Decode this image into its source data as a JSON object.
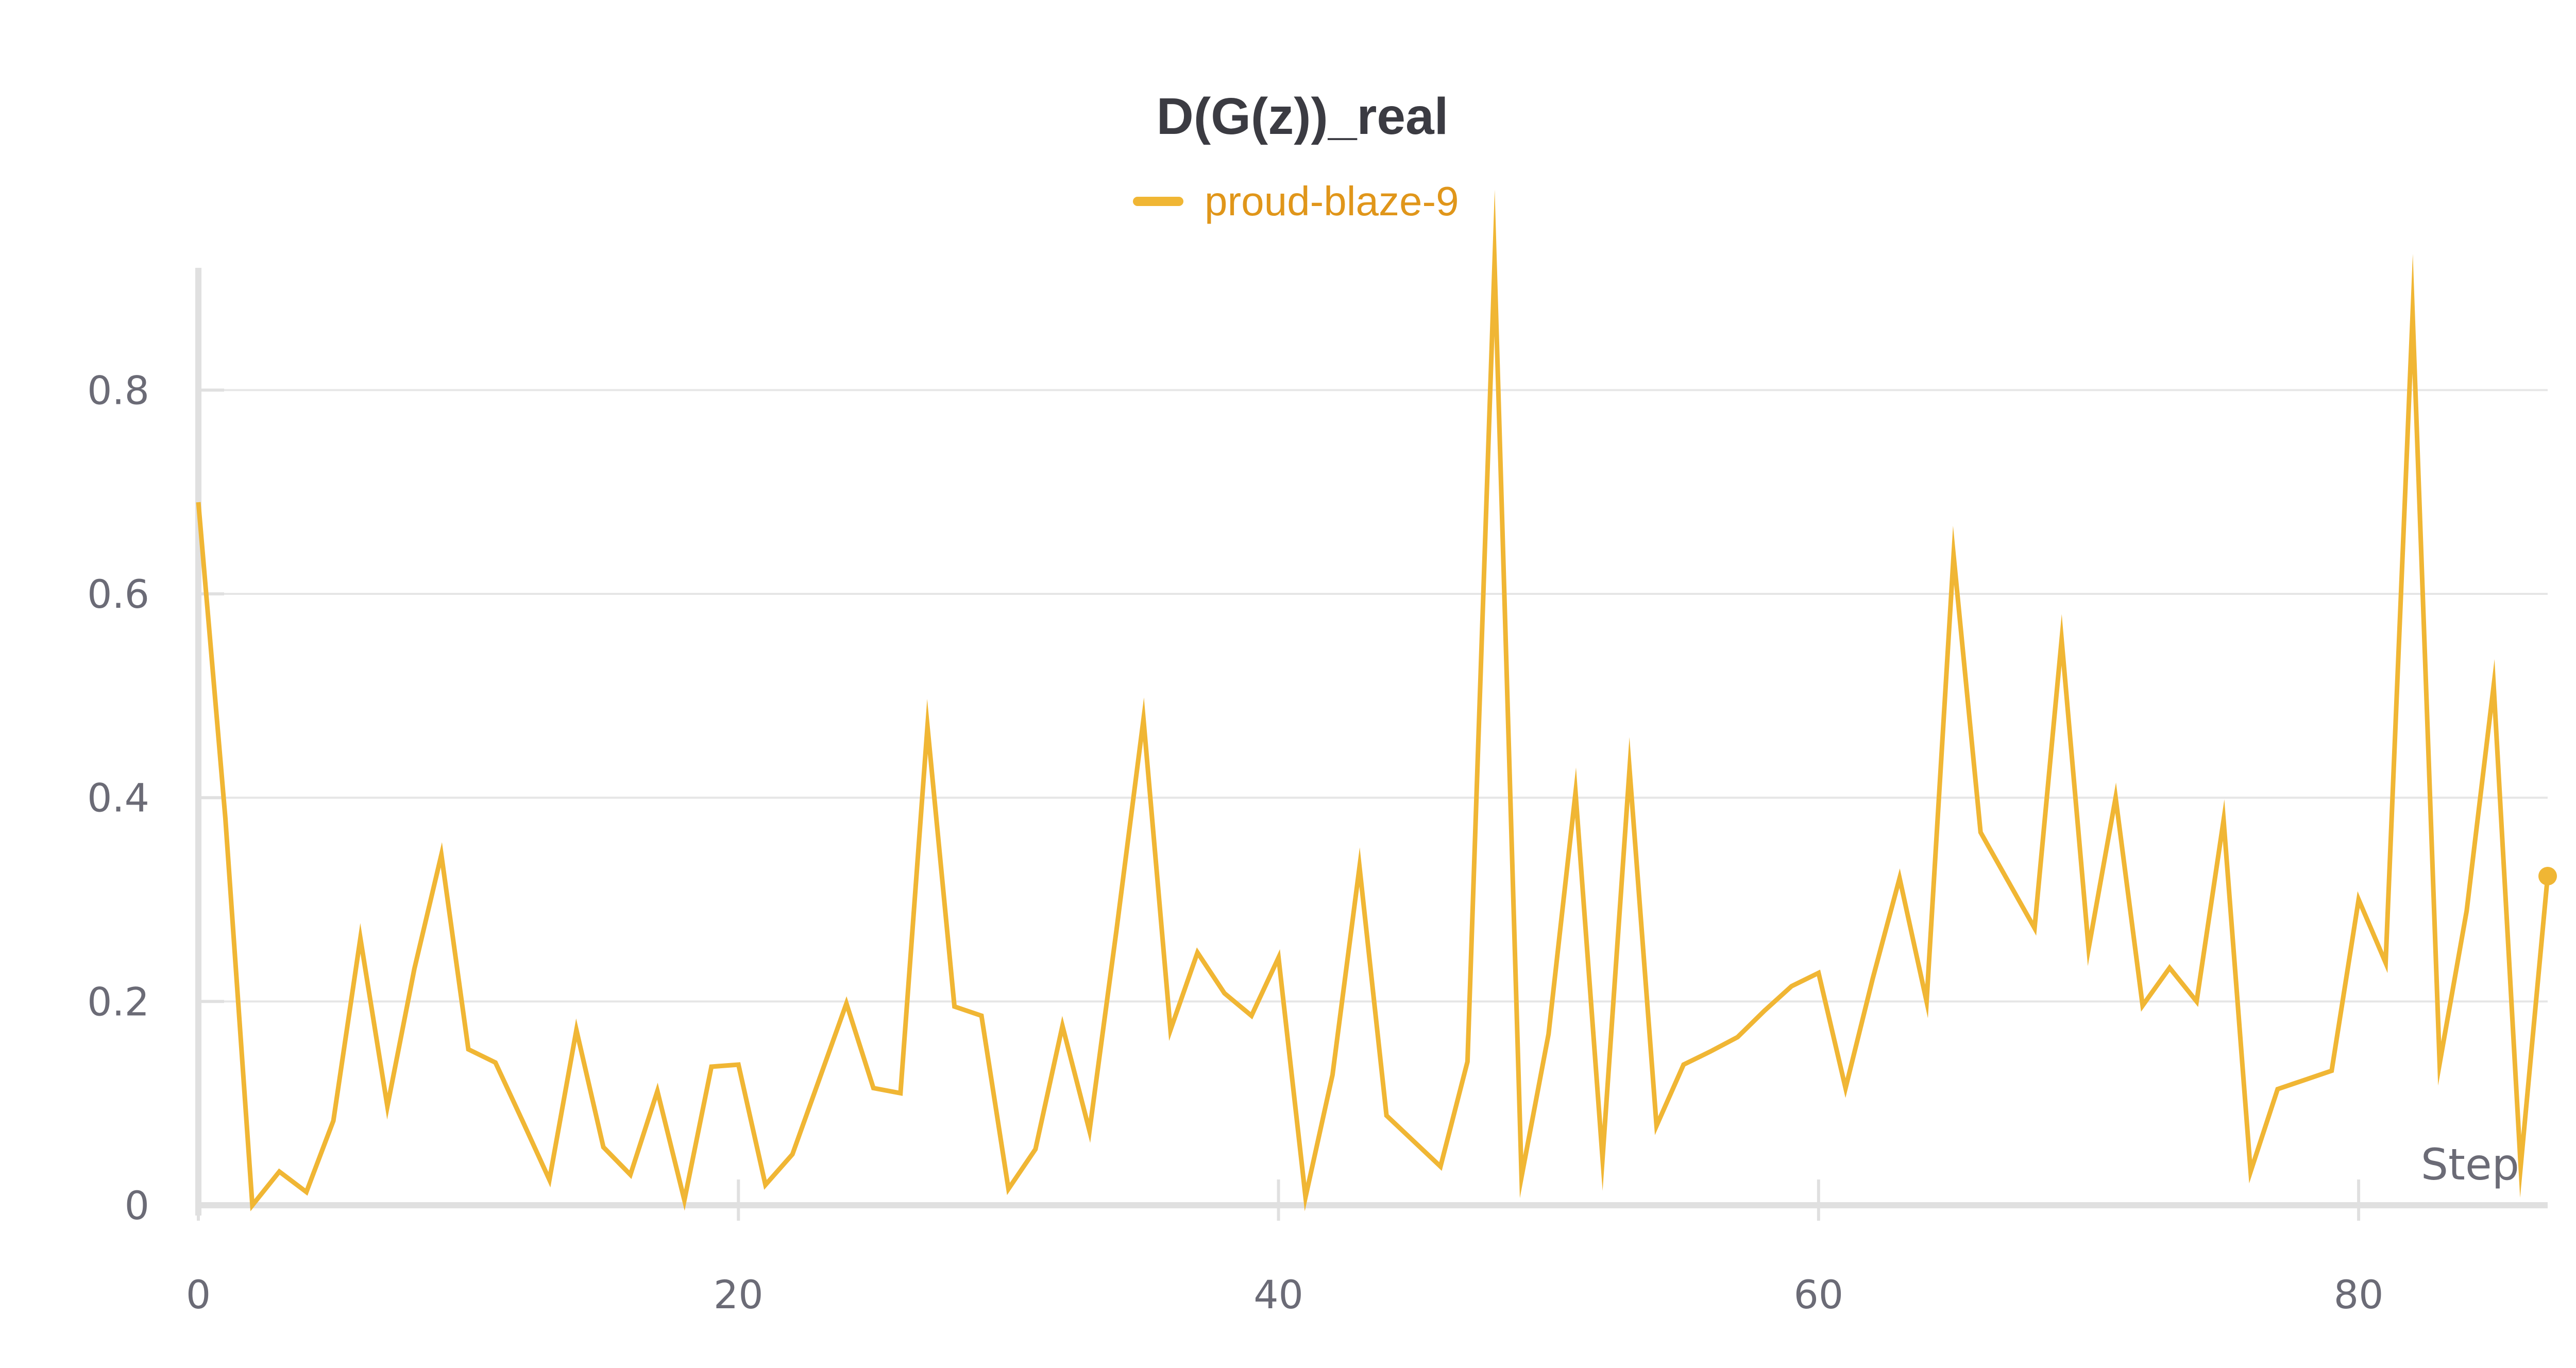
{
  "chart_data": {
    "type": "line",
    "title": "D(G(z))_real",
    "xlabel": "Step",
    "ylabel": "",
    "xlim": [
      0,
      87
    ],
    "ylim": [
      0,
      0.92
    ],
    "x_ticks": [
      0,
      20,
      40,
      60,
      80
    ],
    "y_ticks": [
      0,
      0.2,
      0.4,
      0.6,
      0.8
    ],
    "x_tick_labels": [
      "0",
      "20",
      "40",
      "60",
      "80"
    ],
    "y_tick_labels": [
      "0",
      "0.2",
      "0.4",
      "0.6",
      "0.8"
    ],
    "grid": true,
    "legend_position": "top-center",
    "colors": {
      "series": "#f0b634",
      "legend_text": "#e0961a",
      "grid": "#e6e6e6",
      "axis": "#e0e0e0"
    },
    "series": [
      {
        "name": "proud-blaze-9",
        "x": [
          0,
          1,
          2,
          3,
          4,
          5,
          6,
          7,
          8,
          9,
          10,
          11,
          12,
          13,
          14,
          15,
          16,
          17,
          18,
          19,
          20,
          21,
          22,
          23,
          24,
          25,
          26,
          27,
          28,
          29,
          30,
          31,
          32,
          33,
          34,
          35,
          36,
          37,
          38,
          39,
          40,
          41,
          42,
          43,
          44,
          45,
          46,
          47,
          48,
          49,
          50,
          51,
          52,
          53,
          54,
          55,
          56,
          57,
          58,
          59,
          60,
          61,
          62,
          63,
          64,
          65,
          66,
          67,
          68,
          69,
          70,
          71,
          72,
          73,
          74,
          75,
          76,
          77,
          78,
          79,
          80,
          81,
          82,
          83,
          84,
          85,
          86,
          87
        ],
        "values": [
          0.69,
          0.38,
          0.0,
          0.033,
          0.013,
          0.083,
          0.262,
          0.097,
          0.232,
          0.344,
          0.153,
          0.14,
          0.083,
          0.025,
          0.172,
          0.057,
          0.03,
          0.112,
          0.005,
          0.136,
          0.138,
          0.02,
          0.05,
          0.124,
          0.198,
          0.115,
          0.11,
          0.47,
          0.195,
          0.186,
          0.016,
          0.055,
          0.176,
          0.073,
          0.27,
          0.477,
          0.172,
          0.248,
          0.208,
          0.186,
          0.243,
          0.008,
          0.128,
          0.332,
          0.088,
          0.063,
          0.038,
          0.141,
          0.925,
          0.028,
          0.168,
          0.405,
          0.046,
          0.428,
          0.078,
          0.138,
          0.151,
          0.165,
          0.191,
          0.215,
          0.228,
          0.115,
          0.222,
          0.321,
          0.2,
          0.638,
          0.366,
          0.319,
          0.272,
          0.555,
          0.252,
          0.4,
          0.196,
          0.233,
          0.2,
          0.378,
          0.033,
          0.114,
          0.123,
          0.132,
          0.3,
          0.238,
          0.875,
          0.139,
          0.289,
          0.51,
          0.038,
          0.323
        ]
      }
    ]
  }
}
